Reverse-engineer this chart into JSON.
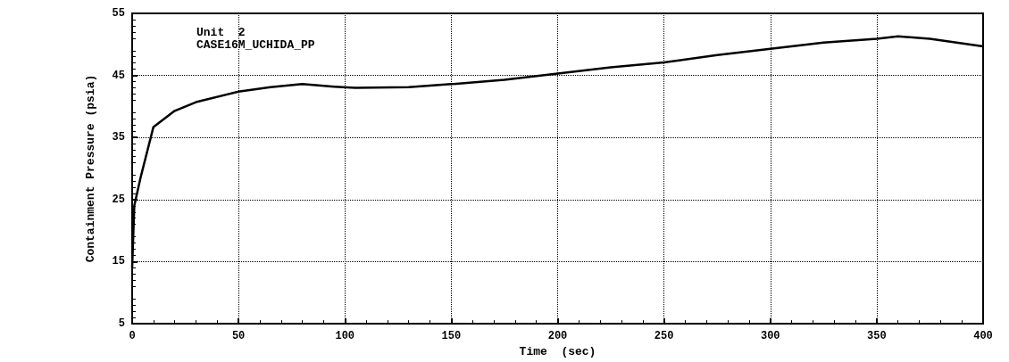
{
  "chart_data": {
    "type": "line",
    "xlabel": "Time  (sec)",
    "ylabel": "Containment Pressure (psia)",
    "annotations": [
      "Unit  2",
      "CASE16M_UCHIDA_PP"
    ],
    "x": [
      0,
      0.5,
      1,
      4,
      10,
      20,
      30,
      50,
      65,
      80,
      95,
      105,
      130,
      150,
      175,
      200,
      225,
      250,
      275,
      300,
      325,
      350,
      360,
      375,
      400
    ],
    "series": [
      {
        "color": "#000000",
        "values": [
          14,
          19,
          24,
          28.6,
          36.7,
          39.3,
          40.7,
          42.4,
          43.1,
          43.6,
          43.2,
          43,
          43.1,
          43.6,
          44.3,
          45.3,
          46.3,
          47.1,
          48.3,
          49.3,
          50.3,
          50.9,
          51.3,
          50.9,
          49.7
        ]
      }
    ],
    "xlim": [
      0,
      400
    ],
    "xticks": [
      0,
      50,
      100,
      150,
      200,
      250,
      300,
      350,
      400
    ],
    "ylim": [
      5,
      55
    ],
    "yticks": [
      5,
      15,
      25,
      35,
      45,
      55
    ],
    "grid": true,
    "marker": "none",
    "line_style": "solid"
  }
}
